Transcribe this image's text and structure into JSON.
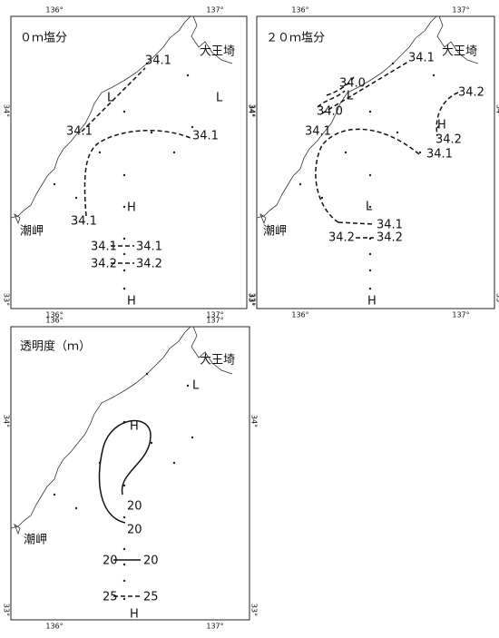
{
  "panels": [
    {
      "title": "０ｍ塩分",
      "places": [
        "大王埼",
        "潮岬"
      ],
      "contour_labels": [
        "34.1",
        "34.1",
        "34.1",
        "34.1",
        "34.1",
        "34.1",
        "34.2",
        "34.2"
      ],
      "markers": [
        "L",
        "H",
        "L",
        "H"
      ]
    },
    {
      "title": "２０ｍ塩分",
      "places": [
        "大王埼",
        "潮岬"
      ],
      "contour_labels": [
        "34.1",
        "34.0",
        "34.0",
        "34.1",
        "34.2",
        "34.2",
        "34.1",
        "34.1",
        "34.2",
        "34.2"
      ],
      "markers": [
        "L",
        "H",
        "L",
        "H"
      ]
    },
    {
      "title": "透明度（ｍ）",
      "places": [
        "大王埼",
        "潮岬"
      ],
      "contour_labels": [
        "20",
        "20",
        "20",
        "20",
        "25",
        "25"
      ],
      "markers": [
        "L",
        "H",
        "H"
      ]
    }
  ],
  "axes": {
    "longitude": [
      "136°",
      "137°"
    ],
    "latitude": [
      "34°",
      "33°"
    ]
  }
}
